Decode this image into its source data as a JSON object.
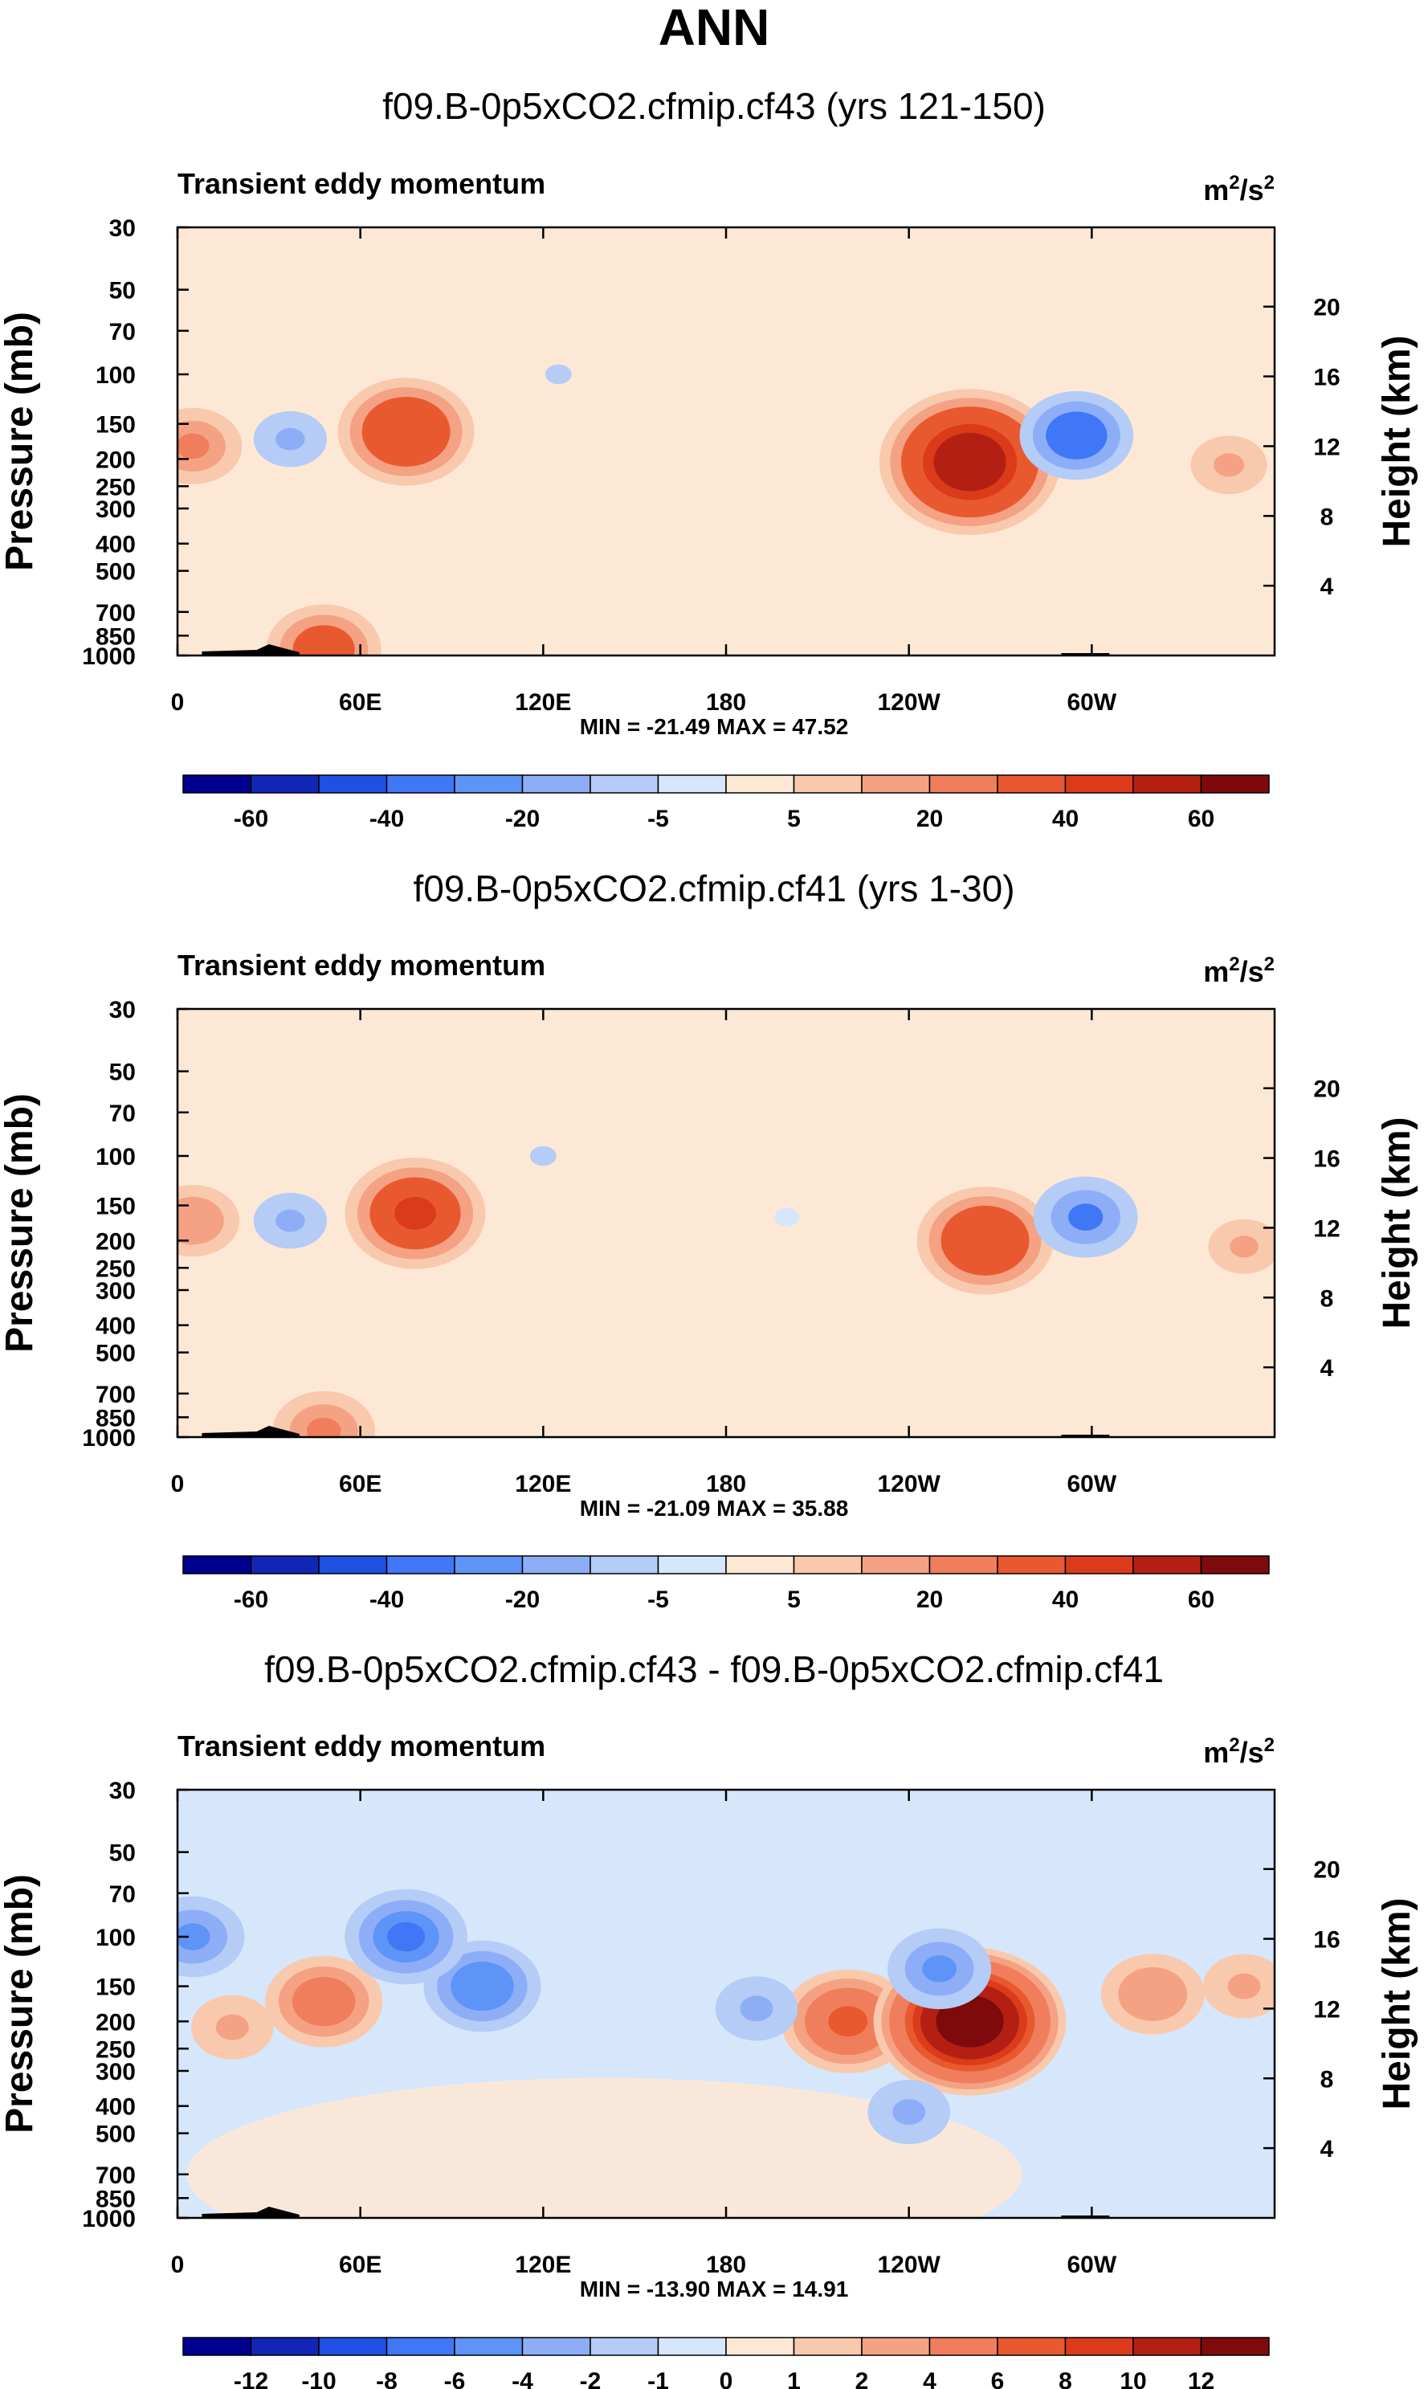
{
  "figure_title": "ANN",
  "colors": {
    "scale": [
      "#00008f",
      "#1126b4",
      "#1f4fe3",
      "#3f77f6",
      "#5e94f7",
      "#8daef7",
      "#b4ccf6",
      "#d6e7fb",
      "#fde8d6",
      "#f9c9ad",
      "#f4a283",
      "#f07e5c",
      "#e9592f",
      "#db3b1b",
      "#b32013",
      "#7f0a0c"
    ]
  },
  "chart_data": [
    {
      "type": "heatmap",
      "title": "f09.B-0p5xCO2.cfmip.cf43 (yrs 121-150)",
      "left_title": "Transient eddy momentum",
      "units_base": "m",
      "units_exp1": "2",
      "units_mid": "/s",
      "units_exp2": "2",
      "ylabel": "Pressure (mb)",
      "ylabel_right": "Height (km)",
      "x_ticks": [
        "0",
        "60E",
        "120E",
        "180",
        "120W",
        "60W"
      ],
      "y_ticks": [
        "30",
        "50",
        "70",
        "100",
        "150",
        "200",
        "250",
        "300",
        "400",
        "500",
        "700",
        "850",
        "1000"
      ],
      "y_ticks_right": [
        "20",
        "16",
        "12",
        "8",
        "4"
      ],
      "stats": "MIN = -21.49  MAX = 47.52",
      "colorbar_labels": [
        "-60",
        "-40",
        "-20",
        "-5",
        "5",
        "20",
        "40",
        "60"
      ],
      "features": [
        {
          "lon": 75,
          "p": 160,
          "value": 30
        },
        {
          "lon": 260,
          "p": 205,
          "value": 47.5
        },
        {
          "lon": 5,
          "p": 180,
          "value": 18
        },
        {
          "lon": 345,
          "p": 210,
          "value": 14
        },
        {
          "lon": 37,
          "p": 170,
          "value": -12
        },
        {
          "lon": 295,
          "p": 165,
          "value": -21.5
        },
        {
          "lon": 125,
          "p": 100,
          "value": -7
        },
        {
          "lon": 48,
          "p": 950,
          "value": 22
        }
      ]
    },
    {
      "type": "heatmap",
      "title": "f09.B-0p5xCO2.cfmip.cf41 (yrs 1-30)",
      "left_title": "Transient eddy momentum",
      "units_base": "m",
      "units_exp1": "2",
      "units_mid": "/s",
      "units_exp2": "2",
      "ylabel": "Pressure (mb)",
      "ylabel_right": "Height (km)",
      "x_ticks": [
        "0",
        "60E",
        "120E",
        "180",
        "120W",
        "60W"
      ],
      "y_ticks": [
        "30",
        "50",
        "70",
        "100",
        "150",
        "200",
        "250",
        "300",
        "400",
        "500",
        "700",
        "850",
        "1000"
      ],
      "y_ticks_right": [
        "20",
        "16",
        "12",
        "8",
        "4"
      ],
      "stats": "MIN = -21.09  MAX = 35.88",
      "colorbar_labels": [
        "-60",
        "-40",
        "-20",
        "-5",
        "5",
        "20",
        "40",
        "60"
      ],
      "features": [
        {
          "lon": 78,
          "p": 160,
          "value": 32
        },
        {
          "lon": 265,
          "p": 200,
          "value": 30
        },
        {
          "lon": 5,
          "p": 170,
          "value": 15
        },
        {
          "lon": 350,
          "p": 210,
          "value": 11
        },
        {
          "lon": 37,
          "p": 170,
          "value": -12
        },
        {
          "lon": 298,
          "p": 165,
          "value": -21
        },
        {
          "lon": 120,
          "p": 100,
          "value": -7
        },
        {
          "lon": 200,
          "p": 165,
          "value": -5
        },
        {
          "lon": 48,
          "p": 950,
          "value": 20
        }
      ]
    },
    {
      "type": "heatmap",
      "title": "f09.B-0p5xCO2.cfmip.cf43 - f09.B-0p5xCO2.cfmip.cf41",
      "left_title": "Transient eddy momentum",
      "units_base": "m",
      "units_exp1": "2",
      "units_mid": "/s",
      "units_exp2": "2",
      "ylabel": "Pressure (mb)",
      "ylabel_right": "Height (km)",
      "x_ticks": [
        "0",
        "60E",
        "120E",
        "180",
        "120W",
        "60W"
      ],
      "y_ticks": [
        "30",
        "50",
        "70",
        "100",
        "150",
        "200",
        "250",
        "300",
        "400",
        "500",
        "700",
        "850",
        "1000"
      ],
      "y_ticks_right": [
        "20",
        "16",
        "12",
        "8",
        "4"
      ],
      "stats": "MIN = -13.90  MAX = 14.91",
      "colorbar_labels": [
        "-12",
        "-10",
        "-8",
        "-6",
        "-4",
        "-2",
        "-1",
        "0",
        "1",
        "2",
        "4",
        "6",
        "8",
        "10",
        "12"
      ],
      "features": [
        {
          "lon": 220,
          "p": 200,
          "value": 7
        },
        {
          "lon": 260,
          "p": 200,
          "value": 14.9
        },
        {
          "lon": 48,
          "p": 170,
          "value": 5
        },
        {
          "lon": 18,
          "p": 210,
          "value": 3
        },
        {
          "lon": 320,
          "p": 160,
          "value": 4
        },
        {
          "lon": 350,
          "p": 150,
          "value": 3
        },
        {
          "lon": 100,
          "p": 150,
          "value": -5
        },
        {
          "lon": 75,
          "p": 100,
          "value": -6
        },
        {
          "lon": 5,
          "p": 100,
          "value": -4
        },
        {
          "lon": 190,
          "p": 180,
          "value": -3
        },
        {
          "lon": 250,
          "p": 130,
          "value": -4
        },
        {
          "lon": 240,
          "p": 420,
          "value": -3
        }
      ]
    }
  ]
}
